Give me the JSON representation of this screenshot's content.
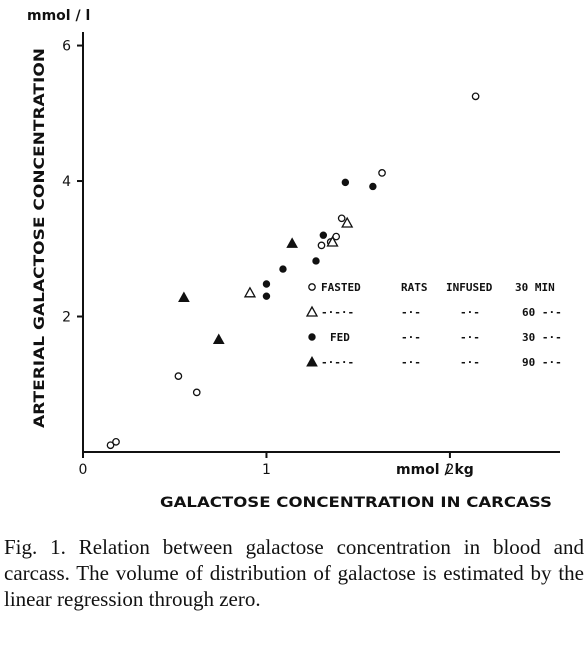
{
  "chart_data": {
    "type": "scatter",
    "y_unit": "mmol / l",
    "ylabel": "ARTERIAL GALACTOSE CONCENTRATION",
    "x_unit": "mmol / kg",
    "xlabel": "GALACTOSE CONCENTRATION IN CARCASS",
    "xlim": [
      0,
      2.6
    ],
    "ylim": [
      0,
      6.2
    ],
    "x_ticks": [
      0,
      1,
      2
    ],
    "y_ticks": [
      2,
      4,
      6
    ],
    "series": [
      {
        "marker": "open-circle",
        "points": [
          [
            0.15,
            0.1
          ],
          [
            0.18,
            0.15
          ],
          [
            0.52,
            1.12
          ],
          [
            0.62,
            0.88
          ],
          [
            1.3,
            3.05
          ],
          [
            1.35,
            3.1
          ],
          [
            1.38,
            3.18
          ],
          [
            1.41,
            3.45
          ],
          [
            1.63,
            4.12
          ],
          [
            2.14,
            5.25
          ]
        ]
      },
      {
        "marker": "open-triangle",
        "points": [
          [
            0.91,
            2.35
          ],
          [
            1.36,
            3.1
          ],
          [
            1.44,
            3.38
          ]
        ]
      },
      {
        "marker": "filled-circle",
        "points": [
          [
            1.0,
            2.3
          ],
          [
            1.0,
            2.48
          ],
          [
            1.09,
            2.7
          ],
          [
            1.27,
            2.82
          ],
          [
            1.31,
            3.2
          ],
          [
            1.43,
            3.98
          ],
          [
            1.58,
            3.92
          ]
        ]
      },
      {
        "marker": "filled-triangle",
        "points": [
          [
            0.55,
            2.28
          ],
          [
            0.74,
            1.66
          ],
          [
            1.14,
            3.08
          ]
        ]
      }
    ]
  },
  "legend": {
    "header": [
      "FASTED",
      "RATS",
      "INFUSED",
      "30 MIN"
    ],
    "rows": [
      {
        "marker": "open-circle",
        "group": "FASTED",
        "rats": "RATS",
        "infused": "INFUSED",
        "time": "30 MIN"
      },
      {
        "marker": "open-triangle",
        "group": "-·-·-",
        "rats": "-·-",
        "infused": "-·-",
        "time": "60 -·-"
      },
      {
        "marker": "filled-circle",
        "group": "FED",
        "rats": "-·-",
        "infused": "-·-",
        "time": "30 -·-"
      },
      {
        "marker": "filled-triangle",
        "group": "-·-·-",
        "rats": "-·-",
        "infused": "-·-",
        "time": "90 -·-"
      }
    ]
  },
  "caption": "Fig. 1. Relation between galactose concentration in blood and carcass. The volume of distribution of galactose is estimated by the linear regression through zero."
}
